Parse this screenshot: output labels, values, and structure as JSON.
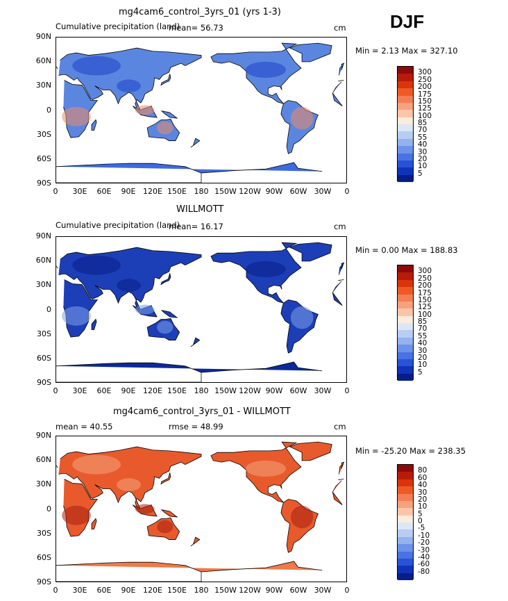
{
  "season": "DJF",
  "panels": [
    {
      "title": "mg4cam6_control_3yrs_01 (yrs 1-3)",
      "left_label": "Cumulative precipitation (land)",
      "mid_label": "mean=   56.73",
      "units": "cm",
      "minmax": "Min =    2.13 Max =  327.10",
      "colorbar": {
        "labels": [
          "300",
          "250",
          "200",
          "175",
          "150",
          "125",
          "100",
          "85",
          "70",
          "55",
          "40",
          "30",
          "20",
          "10",
          "5"
        ],
        "colors": [
          "#8c0a0a",
          "#b71c0a",
          "#d9340c",
          "#ee5a26",
          "#f47e55",
          "#f7a27f",
          "#f9c6aa",
          "#fdebdc",
          "#dbe7f7",
          "#b7cdf2",
          "#93b2ee",
          "#6e92ea",
          "#4a72e3",
          "#2953d6",
          "#1034b8",
          "#061e88"
        ]
      },
      "map": {
        "ocean": "#ffffff",
        "land": "#5b86e0",
        "antarctica": "#3d6ae0",
        "wet": "#ef8b66",
        "dry": "#1e44c9"
      }
    },
    {
      "title": "WILLMOTT",
      "left_label": "Cumulative precipitation (land)",
      "mid_label": "mean=   16.17",
      "units": "cm",
      "minmax": "Min =    0.00 Max =  188.83",
      "colorbar": {
        "labels": [
          "300",
          "250",
          "200",
          "175",
          "150",
          "125",
          "100",
          "85",
          "70",
          "55",
          "40",
          "30",
          "20",
          "10",
          "5"
        ],
        "colors": [
          "#8c0a0a",
          "#b71c0a",
          "#d9340c",
          "#ee5a26",
          "#f47e55",
          "#f7a27f",
          "#f9c6aa",
          "#fdebdc",
          "#dbe7f7",
          "#b7cdf2",
          "#93b2ee",
          "#6e92ea",
          "#4a72e3",
          "#2953d6",
          "#1034b8",
          "#061e88"
        ]
      },
      "map": {
        "ocean": "#ffffff",
        "land": "#1c3fb8",
        "antarctica": "#0a2a9a",
        "wet": "#7ea0ea",
        "dry": "#071e86"
      }
    },
    {
      "title": "mg4cam6_control_3yrs_01 - WILLMOTT",
      "left_label": "mean =   40.55",
      "mid_label": "rmse =   48.99",
      "units": "cm",
      "minmax": "Min = -25.20 Max =  238.35",
      "colorbar": {
        "labels": [
          "80",
          "60",
          "40",
          "30",
          "20",
          "10",
          "5",
          "0",
          "-5",
          "-10",
          "-20",
          "-30",
          "-40",
          "-60",
          "-80"
        ],
        "colors": [
          "#8c0a0a",
          "#b71c0a",
          "#d9340c",
          "#ee5a26",
          "#f47e55",
          "#f7a27f",
          "#f9c6aa",
          "#fdebdc",
          "#dbe7f7",
          "#b7cdf2",
          "#93b2ee",
          "#6e92ea",
          "#4a72e3",
          "#2953d6",
          "#1034b8",
          "#061e88"
        ]
      },
      "map": {
        "ocean": "#ffffff",
        "land": "#e85a2c",
        "antarctica": "#f07a48",
        "wet": "#a82010",
        "dry": "#f4a37c"
      }
    }
  ],
  "lat_labels": [
    "90N",
    "60N",
    "30N",
    "0",
    "30S",
    "60S",
    "90S"
  ],
  "lon_labels": [
    "0",
    "30E",
    "60E",
    "90E",
    "120E",
    "150E",
    "180",
    "150W",
    "120W",
    "90W",
    "60W",
    "30W",
    "0"
  ]
}
